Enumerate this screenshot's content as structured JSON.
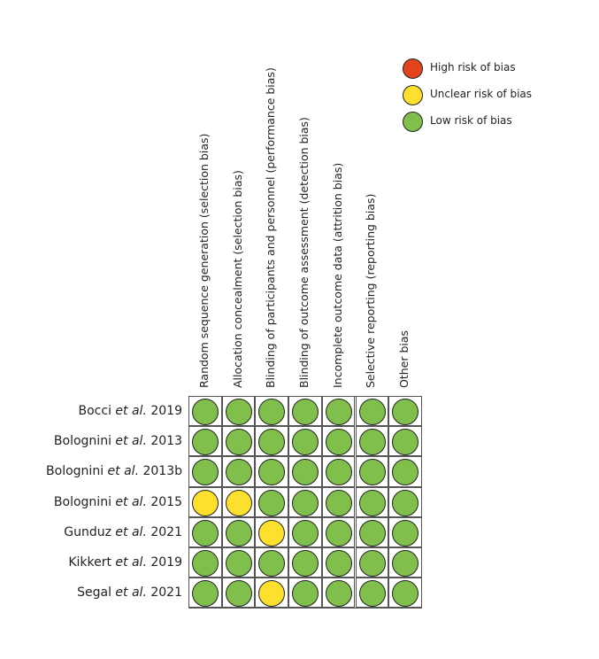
{
  "colors": {
    "high": "#e2441e",
    "unclear": "#fde02e",
    "low": "#80bf4b"
  },
  "legend": [
    {
      "label": "High risk of bias",
      "level": "high"
    },
    {
      "label": "Unclear risk of bias",
      "level": "unclear"
    },
    {
      "label": "Low risk of bias",
      "level": "low"
    }
  ],
  "columns": [
    "Random sequence generation (selection bias)",
    "Allocation concealment (selection bias)",
    "Blinding of participants and personnel (performance bias)",
    "Blinding of outcome assessment (detection bias)",
    "Incomplete outcome data (attrition bias)",
    "Selective reporting (reporting bias)",
    "Other bias"
  ],
  "studies": [
    {
      "author": "Bocci",
      "etal": "et al.",
      "year": "2019"
    },
    {
      "author": "Bolognini",
      "etal": "et al.",
      "year": "2013"
    },
    {
      "author": "Bolognini",
      "etal": "et al.",
      "year": "2013b"
    },
    {
      "author": "Bolognini",
      "etal": "et al.",
      "year": "2015"
    },
    {
      "author": "Gunduz",
      "etal": "et al.",
      "year": "2021"
    },
    {
      "author": "Kikkert",
      "etal": "et al.",
      "year": "2019"
    },
    {
      "author": "Segal",
      "etal": "et al.",
      "year": "2021"
    }
  ],
  "ratings": [
    [
      "low",
      "low",
      "low",
      "low",
      "low",
      "low",
      "low"
    ],
    [
      "low",
      "low",
      "low",
      "low",
      "low",
      "low",
      "low"
    ],
    [
      "low",
      "low",
      "low",
      "low",
      "low",
      "low",
      "low"
    ],
    [
      "unclear",
      "unclear",
      "low",
      "low",
      "low",
      "low",
      "low"
    ],
    [
      "low",
      "low",
      "unclear",
      "low",
      "low",
      "low",
      "low"
    ],
    [
      "low",
      "low",
      "low",
      "low",
      "low",
      "low",
      "low"
    ],
    [
      "low",
      "low",
      "unclear",
      "low",
      "low",
      "low",
      "low"
    ]
  ]
}
